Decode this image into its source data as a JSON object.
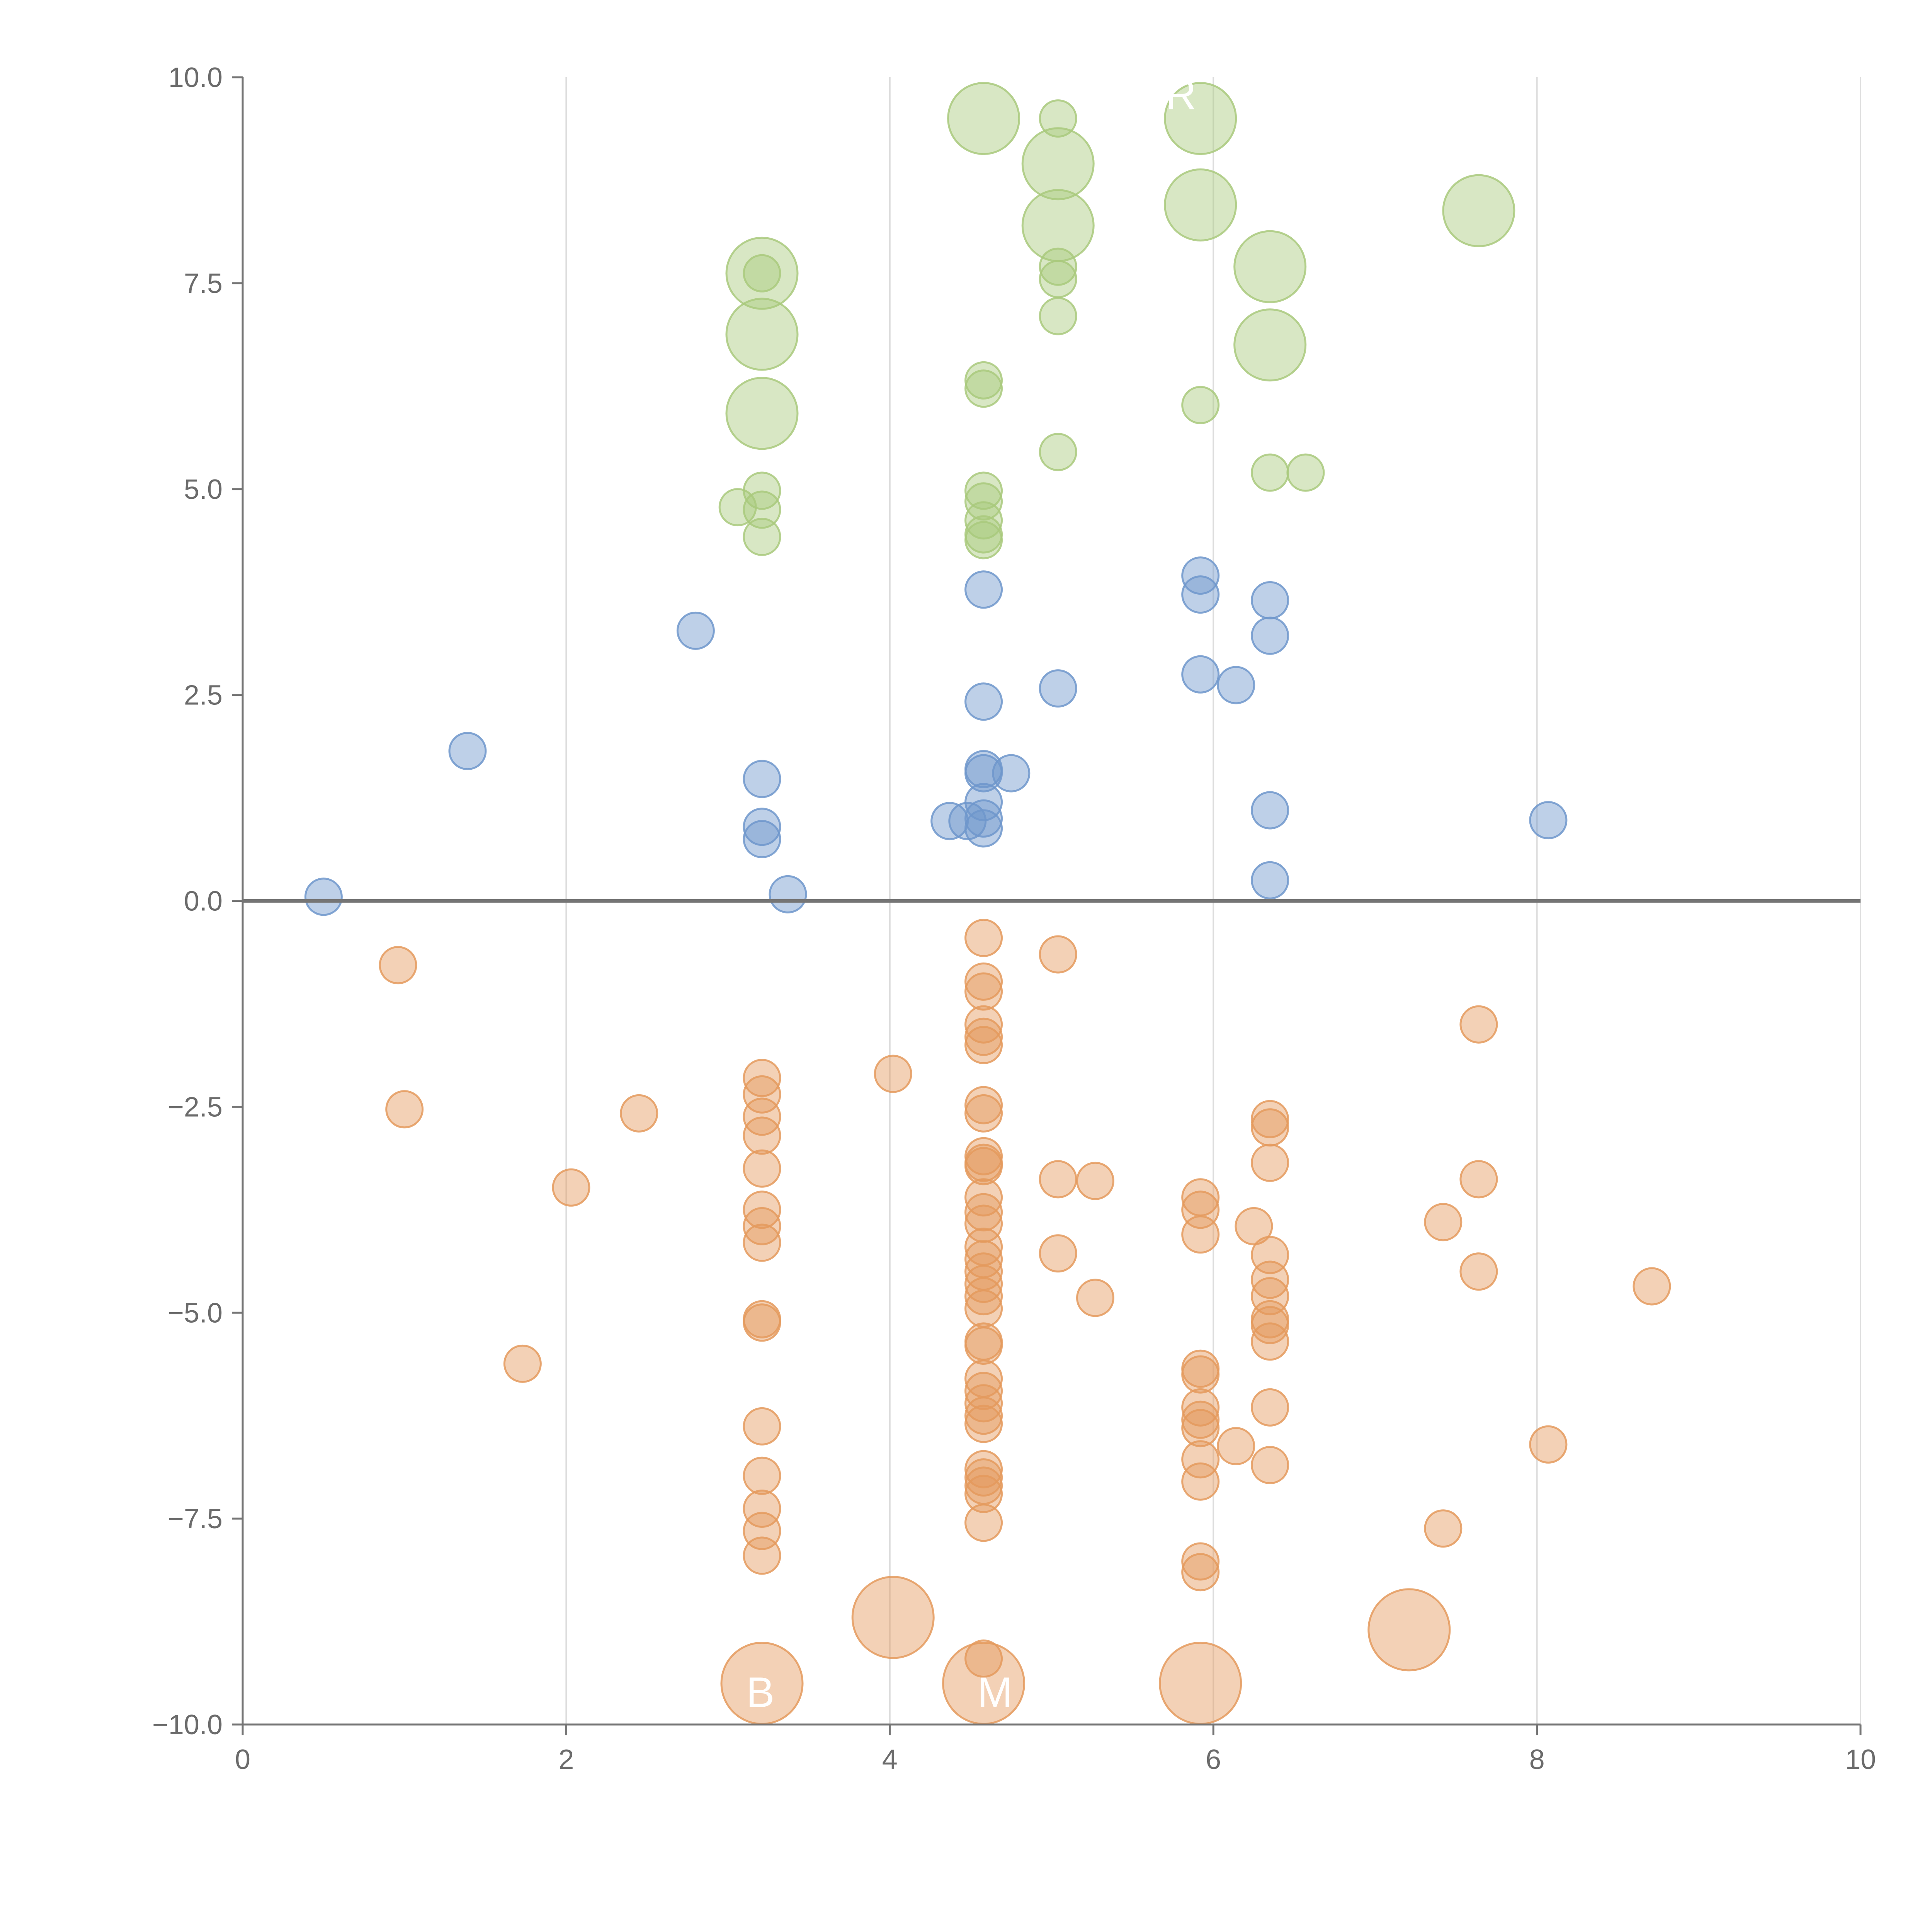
{
  "chart_data": {
    "type": "scatter",
    "title": "",
    "xlabel": "",
    "ylabel": "",
    "xlim": [
      0,
      10
    ],
    "ylim": [
      -10,
      10
    ],
    "x_ticks": [
      0,
      2,
      4,
      6,
      8,
      10
    ],
    "x_tick_labels": [
      "0",
      "2",
      "4",
      "6",
      "8",
      "10"
    ],
    "y_ticks": [
      10,
      7.5,
      5,
      2.5,
      0,
      -2.5,
      -5,
      -7.5,
      -10
    ],
    "y_tick_labels": [
      "10.0",
      "7.5",
      "5.0",
      "2.5",
      "0.0",
      "−2.5",
      "−5.0",
      "−7.5",
      "−10.0"
    ],
    "vertical_gridlines": true,
    "zero_line": true,
    "colors": {
      "blue": "#6f96cb",
      "green": "#a9c97c",
      "orange": "#e49a5d",
      "axis": "#757575",
      "grid": "#dddddd"
    },
    "annotations": [
      {
        "text": "R",
        "x": 5.8,
        "y": 9.8
      },
      {
        "text": "B",
        "x": 3.2,
        "y": -9.6
      },
      {
        "text": "M",
        "x": 4.65,
        "y": -9.6
      }
    ],
    "series": [
      {
        "color": "#a9c97c",
        "points": [
          [
            4.58,
            9.5,
            2
          ],
          [
            5.04,
            9.5,
            1
          ],
          [
            5.04,
            8.95,
            2
          ],
          [
            5.04,
            8.2,
            2
          ],
          [
            5.04,
            7.7,
            1
          ],
          [
            5.04,
            7.55,
            1
          ],
          [
            5.04,
            7.1,
            1
          ],
          [
            5.04,
            5.45,
            1
          ],
          [
            5.92,
            9.5,
            2
          ],
          [
            5.92,
            8.45,
            2
          ],
          [
            5.92,
            6.02,
            1
          ],
          [
            7.64,
            8.38,
            2
          ],
          [
            6.35,
            7.7,
            2
          ],
          [
            6.35,
            6.75,
            2
          ],
          [
            6.35,
            5.2,
            1
          ],
          [
            6.57,
            5.2,
            1
          ],
          [
            3.21,
            7.62,
            2
          ],
          [
            3.21,
            7.62,
            1
          ],
          [
            3.21,
            6.88,
            2
          ],
          [
            3.21,
            5.92,
            2
          ],
          [
            3.21,
            4.98,
            1
          ],
          [
            3.21,
            4.75,
            1
          ],
          [
            3.21,
            4.42,
            1
          ],
          [
            3.06,
            4.78,
            1
          ],
          [
            4.58,
            6.32,
            1
          ],
          [
            4.58,
            6.22,
            1
          ],
          [
            4.58,
            4.98,
            1
          ],
          [
            4.58,
            4.85,
            1
          ],
          [
            4.58,
            4.62,
            1
          ],
          [
            4.58,
            4.45,
            1
          ],
          [
            4.58,
            4.38,
            1
          ]
        ]
      },
      {
        "color": "#6f96cb",
        "points": [
          [
            4.58,
            3.78,
            1
          ],
          [
            4.58,
            2.42,
            1
          ],
          [
            4.58,
            1.6,
            1
          ],
          [
            4.58,
            1.55,
            1
          ],
          [
            4.58,
            1.2,
            1
          ],
          [
            4.58,
            1.0,
            1
          ],
          [
            4.58,
            0.88,
            1
          ],
          [
            4.75,
            1.55,
            1
          ],
          [
            4.37,
            0.97,
            1
          ],
          [
            4.48,
            0.97,
            1
          ],
          [
            5.04,
            2.58,
            1
          ],
          [
            5.92,
            3.95,
            1
          ],
          [
            5.92,
            3.72,
            1
          ],
          [
            5.92,
            2.75,
            1
          ],
          [
            6.14,
            2.62,
            1
          ],
          [
            6.35,
            3.65,
            1
          ],
          [
            6.35,
            3.22,
            1
          ],
          [
            6.35,
            1.1,
            1
          ],
          [
            6.35,
            0.25,
            1
          ],
          [
            8.07,
            0.98,
            1
          ],
          [
            2.8,
            3.28,
            1
          ],
          [
            1.39,
            1.82,
            1
          ],
          [
            3.21,
            1.48,
            1
          ],
          [
            3.21,
            0.9,
            1
          ],
          [
            3.21,
            0.75,
            1
          ],
          [
            3.37,
            0.08,
            1
          ],
          [
            0.5,
            0.05,
            1
          ]
        ]
      },
      {
        "color": "#e49a5d",
        "points": [
          [
            0.96,
            -0.78,
            1
          ],
          [
            1.0,
            -2.53,
            1
          ],
          [
            1.73,
            -5.62,
            1
          ],
          [
            2.03,
            -3.48,
            1
          ],
          [
            2.45,
            -2.58,
            1
          ],
          [
            4.02,
            -2.1,
            1
          ],
          [
            3.21,
            -2.15,
            1
          ],
          [
            3.21,
            -2.35,
            1
          ],
          [
            3.21,
            -2.62,
            1
          ],
          [
            3.21,
            -2.85,
            1
          ],
          [
            3.21,
            -3.25,
            1
          ],
          [
            3.21,
            -3.75,
            1
          ],
          [
            3.21,
            -3.95,
            1
          ],
          [
            3.21,
            -4.15,
            1
          ],
          [
            3.21,
            -5.08,
            1
          ],
          [
            3.21,
            -5.12,
            1
          ],
          [
            3.21,
            -6.38,
            1
          ],
          [
            3.21,
            -6.98,
            1
          ],
          [
            3.21,
            -7.38,
            1
          ],
          [
            3.21,
            -7.65,
            1
          ],
          [
            3.21,
            -7.95,
            1
          ],
          [
            3.21,
            -9.5,
            3
          ],
          [
            4.58,
            -0.45,
            1
          ],
          [
            4.58,
            -0.98,
            1
          ],
          [
            4.58,
            -1.1,
            1
          ],
          [
            4.58,
            -1.5,
            1
          ],
          [
            4.58,
            -1.65,
            1
          ],
          [
            4.58,
            -1.75,
            1
          ],
          [
            4.58,
            -2.48,
            1
          ],
          [
            4.58,
            -2.58,
            1
          ],
          [
            4.58,
            -3.1,
            1
          ],
          [
            4.58,
            -3.18,
            1
          ],
          [
            4.58,
            -3.22,
            1
          ],
          [
            4.58,
            -3.6,
            1
          ],
          [
            4.58,
            -3.78,
            1
          ],
          [
            4.58,
            -3.92,
            1
          ],
          [
            4.58,
            -4.2,
            1
          ],
          [
            4.58,
            -4.35,
            1
          ],
          [
            4.58,
            -4.5,
            1
          ],
          [
            4.58,
            -4.65,
            1
          ],
          [
            4.58,
            -4.8,
            1
          ],
          [
            4.58,
            -4.95,
            1
          ],
          [
            4.58,
            -5.35,
            1
          ],
          [
            4.58,
            -5.4,
            1
          ],
          [
            4.58,
            -5.8,
            1
          ],
          [
            4.58,
            -5.95,
            1
          ],
          [
            4.58,
            -6.1,
            1
          ],
          [
            4.58,
            -6.25,
            1
          ],
          [
            4.58,
            -6.35,
            1
          ],
          [
            4.58,
            -6.9,
            1
          ],
          [
            4.58,
            -7.0,
            1
          ],
          [
            4.58,
            -7.1,
            1
          ],
          [
            4.58,
            -7.2,
            1
          ],
          [
            4.58,
            -7.55,
            1
          ],
          [
            4.58,
            -9.2,
            1
          ],
          [
            4.58,
            -9.5,
            3
          ],
          [
            4.02,
            -8.7,
            3
          ],
          [
            5.04,
            -0.65,
            1
          ],
          [
            5.04,
            -3.38,
            1
          ],
          [
            5.04,
            -4.28,
            1
          ],
          [
            5.27,
            -3.4,
            1
          ],
          [
            5.27,
            -4.82,
            1
          ],
          [
            5.92,
            -3.6,
            1
          ],
          [
            5.92,
            -3.75,
            1
          ],
          [
            5.92,
            -4.05,
            1
          ],
          [
            5.92,
            -5.68,
            1
          ],
          [
            5.92,
            -5.75,
            1
          ],
          [
            5.92,
            -6.15,
            1
          ],
          [
            5.92,
            -6.3,
            1
          ],
          [
            5.92,
            -6.4,
            1
          ],
          [
            5.92,
            -6.78,
            1
          ],
          [
            5.92,
            -7.05,
            1
          ],
          [
            5.92,
            -8.02,
            1
          ],
          [
            5.92,
            -8.15,
            1
          ],
          [
            5.92,
            -9.5,
            3
          ],
          [
            6.14,
            -6.62,
            1
          ],
          [
            6.25,
            -3.95,
            1
          ],
          [
            6.35,
            -2.65,
            1
          ],
          [
            6.35,
            -2.75,
            1
          ],
          [
            6.35,
            -3.18,
            1
          ],
          [
            6.35,
            -4.3,
            1
          ],
          [
            6.35,
            -4.6,
            1
          ],
          [
            6.35,
            -4.8,
            1
          ],
          [
            6.35,
            -5.08,
            1
          ],
          [
            6.35,
            -5.15,
            1
          ],
          [
            6.35,
            -5.35,
            1
          ],
          [
            6.35,
            -6.15,
            1
          ],
          [
            6.35,
            -6.85,
            1
          ],
          [
            7.21,
            -8.85,
            3
          ],
          [
            7.42,
            -3.9,
            1
          ],
          [
            7.42,
            -7.62,
            1
          ],
          [
            7.64,
            -1.5,
            1
          ],
          [
            7.64,
            -3.38,
            1
          ],
          [
            7.64,
            -4.5,
            1
          ],
          [
            8.07,
            -6.6,
            1
          ],
          [
            8.71,
            -4.68,
            1
          ]
        ]
      }
    ]
  }
}
